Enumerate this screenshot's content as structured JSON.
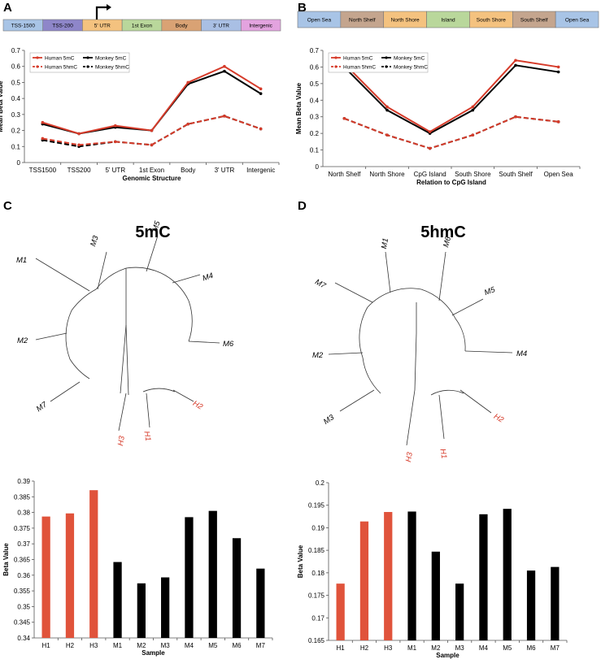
{
  "colors": {
    "human": "#d63b2a",
    "monkey": "#000000",
    "human_bar": "#e0533b",
    "monkey_bar": "#000000",
    "axis": "#555555",
    "grid": "#dddddd"
  },
  "panels": {
    "a": {
      "letter": "A"
    },
    "b": {
      "letter": "B"
    },
    "c": {
      "letter": "C"
    },
    "d": {
      "letter": "D"
    }
  },
  "gene_structure_bar": {
    "segments": [
      {
        "label": "TSS-1500",
        "color": "#a8c4e6"
      },
      {
        "label": "TSS-200",
        "color": "#8e86c9"
      },
      {
        "label": "5' UTR",
        "color": "#f4c27f"
      },
      {
        "label": "1st Exon",
        "color": "#b9d79b"
      },
      {
        "label": "Body",
        "color": "#d9a274"
      },
      {
        "label": "3' UTR",
        "color": "#a9bfe4"
      },
      {
        "label": "Intergenic",
        "color": "#e3a3df"
      }
    ]
  },
  "cpg_bar": {
    "segments": [
      {
        "label": "Open Sea",
        "color": "#a8c4e6"
      },
      {
        "label": "North Shelf",
        "color": "#c4a58e"
      },
      {
        "label": "North Shore",
        "color": "#f4c27f"
      },
      {
        "label": "Island",
        "color": "#b9d79b"
      },
      {
        "label": "South Shore",
        "color": "#f4c27f"
      },
      {
        "label": "South Shelf",
        "color": "#c4a58e"
      },
      {
        "label": "Open Sea",
        "color": "#a8c4e6"
      }
    ]
  },
  "trees": {
    "c": {
      "title": "5mC",
      "leaves": [
        {
          "label": "M3",
          "human": false
        },
        {
          "label": "M5",
          "human": false
        },
        {
          "label": "M1",
          "human": false
        },
        {
          "label": "M4",
          "human": false
        },
        {
          "label": "M2",
          "human": false
        },
        {
          "label": "M6",
          "human": false
        },
        {
          "label": "M7",
          "human": false
        },
        {
          "label": "H2",
          "human": true
        },
        {
          "label": "H3",
          "human": true
        },
        {
          "label": "H1",
          "human": true
        }
      ]
    },
    "d": {
      "title": "5hmC",
      "leaves": [
        {
          "label": "M1",
          "human": false
        },
        {
          "label": "M6",
          "human": false
        },
        {
          "label": "M7",
          "human": false
        },
        {
          "label": "M5",
          "human": false
        },
        {
          "label": "M2",
          "human": false
        },
        {
          "label": "M4",
          "human": false
        },
        {
          "label": "M3",
          "human": false
        },
        {
          "label": "H2",
          "human": true
        },
        {
          "label": "H3",
          "human": true
        },
        {
          "label": "H1",
          "human": true
        }
      ]
    }
  },
  "chart_data": [
    {
      "id": "A",
      "type": "line",
      "title": "",
      "xlabel": "Genomic Structure",
      "ylabel": "Mean Beta Value",
      "categories": [
        "TSS1500",
        "TSS200",
        "5' UTR",
        "1st Exon",
        "Body",
        "3' UTR",
        "Intergenic"
      ],
      "ylim": [
        0,
        0.7
      ],
      "yticks": [
        "0",
        "0.1",
        "0.2",
        "0.3",
        "0.4",
        "0.5",
        "0.6",
        "0.7"
      ],
      "legend": "top-left",
      "series": [
        {
          "name": "Human 5mC",
          "color": "#d63b2a",
          "dashed": false,
          "values": [
            0.25,
            0.18,
            0.23,
            0.2,
            0.5,
            0.6,
            0.46
          ]
        },
        {
          "name": "Monkey 5mC",
          "color": "#000000",
          "dashed": false,
          "values": [
            0.24,
            0.18,
            0.22,
            0.2,
            0.49,
            0.57,
            0.43
          ]
        },
        {
          "name": "Human 5hmC",
          "color": "#d63b2a",
          "dashed": true,
          "values": [
            0.15,
            0.11,
            0.13,
            0.11,
            0.24,
            0.29,
            0.21
          ]
        },
        {
          "name": "Monkey 5hmC",
          "color": "#000000",
          "dashed": true,
          "values": [
            0.14,
            0.1,
            0.13,
            0.11,
            0.24,
            0.29,
            0.21
          ]
        }
      ]
    },
    {
      "id": "B",
      "type": "line",
      "title": "",
      "xlabel": "Relation to CpG Island",
      "ylabel": "Mean Beta Value",
      "categories": [
        "North Shelf",
        "North Shore",
        "CpG Island",
        "South Shore",
        "South Shelf",
        "Open Sea"
      ],
      "ylim": [
        0,
        0.7
      ],
      "yticks": [
        "0",
        "0.1",
        "0.2",
        "0.3",
        "0.4",
        "0.5",
        "0.6",
        "0.7"
      ],
      "legend": "top-left",
      "series": [
        {
          "name": "Human 5mC",
          "color": "#d63b2a",
          "dashed": false,
          "values": [
            0.62,
            0.36,
            0.21,
            0.36,
            0.64,
            0.6
          ]
        },
        {
          "name": "Monkey 5mC",
          "color": "#000000",
          "dashed": false,
          "values": [
            0.6,
            0.34,
            0.2,
            0.34,
            0.61,
            0.57
          ]
        },
        {
          "name": "Human 5hmC",
          "color": "#d63b2a",
          "dashed": true,
          "values": [
            0.29,
            0.19,
            0.11,
            0.19,
            0.3,
            0.27
          ]
        },
        {
          "name": "Monkey 5hmC",
          "color": "#000000",
          "dashed": true,
          "values": [
            0.29,
            0.19,
            0.11,
            0.19,
            0.3,
            0.27
          ]
        }
      ]
    },
    {
      "id": "C",
      "type": "bar",
      "title": "",
      "xlabel": "Sample",
      "ylabel": "Beta Value",
      "categories": [
        "H1",
        "H2",
        "H3",
        "M1",
        "M2",
        "M3",
        "M4",
        "M5",
        "M6",
        "M7"
      ],
      "values": [
        0.3787,
        0.3797,
        0.3871,
        0.3642,
        0.3574,
        0.3593,
        0.3785,
        0.3805,
        0.3718,
        0.3621
      ],
      "ylim": [
        0.34,
        0.39
      ],
      "yticks": [
        "0.34",
        "0.345",
        "0.35",
        "0.355",
        "0.36",
        "0.365",
        "0.37",
        "0.375",
        "0.38",
        "0.385",
        "0.39"
      ],
      "human_count": 3
    },
    {
      "id": "D",
      "type": "bar",
      "title": "",
      "xlabel": "Sample",
      "ylabel": "Beta Value",
      "categories": [
        "H1",
        "H2",
        "H3",
        "M1",
        "M2",
        "M3",
        "M4",
        "M5",
        "M6",
        "M7"
      ],
      "values": [
        0.1776,
        0.1914,
        0.1935,
        0.1936,
        0.1847,
        0.1776,
        0.193,
        0.1942,
        0.1805,
        0.1813
      ],
      "ylim": [
        0.165,
        0.2
      ],
      "yticks": [
        "0.165",
        "0.17",
        "0.175",
        "0.18",
        "0.185",
        "0.19",
        "0.195",
        "0.2"
      ],
      "human_count": 3
    }
  ]
}
